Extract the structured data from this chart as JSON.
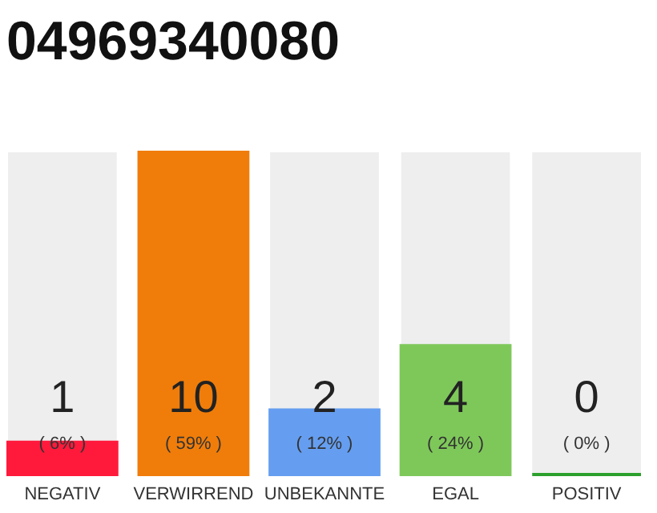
{
  "chart_data": {
    "type": "bar",
    "title": "04969340080",
    "categories": [
      "NEGATIV",
      "VERWIRREND",
      "UNBEKANNTE",
      "EGAL",
      "POSITIV"
    ],
    "values": [
      1,
      10,
      2,
      4,
      0
    ],
    "colors": [
      "#ff1a3c",
      "#f07d0a",
      "#659ef0",
      "#7ec85a",
      "#2ca02c"
    ],
    "ylim": [
      0,
      10
    ],
    "data_labels": true,
    "grid": false,
    "tick_labels": "x",
    "annotations": [
      "( 6% )",
      "( 59% )",
      "( 12% )",
      "( 24% )",
      "( 0% )"
    ]
  }
}
